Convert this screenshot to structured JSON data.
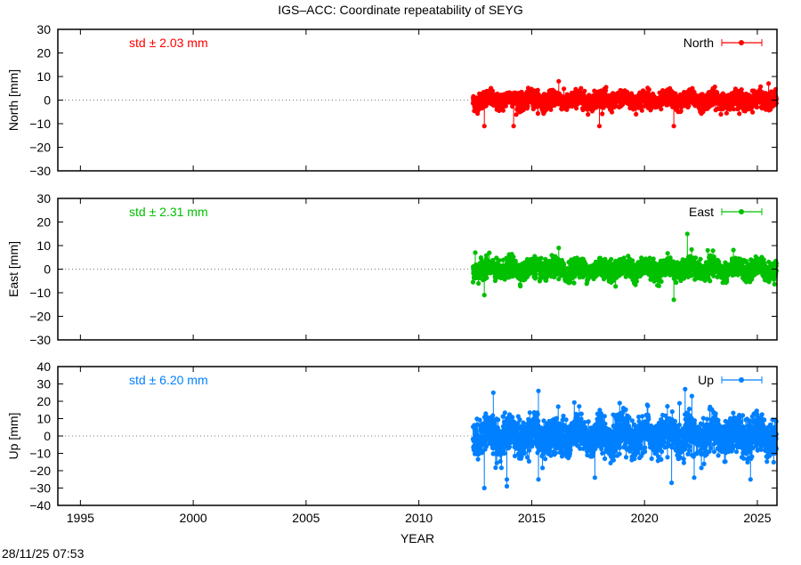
{
  "chart_data": {
    "type": "scatter",
    "title": "IGS–ACC: Coordinate repeatability of SEYG",
    "xlabel": "YEAR",
    "xlim": [
      1994,
      2025.87
    ],
    "xticks": [
      1995,
      2000,
      2005,
      2010,
      2015,
      2020,
      2025
    ],
    "grid": false,
    "zero_line": "dotted",
    "timestamp": "28/11/25 07:53",
    "panels": [
      {
        "name": "North",
        "ylabel": "North [mm]",
        "ylim": [
          -30,
          30
        ],
        "yticks": [
          -30,
          -20,
          -10,
          0,
          10,
          20,
          30
        ],
        "color": "#ff0000",
        "std_label": "std ± 2.03 mm",
        "std": 2.03,
        "x_range": [
          2012.4,
          2025.85
        ],
        "legend": "top-right",
        "notable_points": [
          [
            2012.9,
            -11
          ],
          [
            2014.2,
            -11
          ],
          [
            2016.2,
            8
          ],
          [
            2018.0,
            -11
          ],
          [
            2021.3,
            -11
          ],
          [
            2025.5,
            7
          ]
        ]
      },
      {
        "name": "East",
        "ylabel": "East [mm]",
        "ylim": [
          -30,
          30
        ],
        "yticks": [
          -30,
          -20,
          -10,
          0,
          10,
          20,
          30
        ],
        "color": "#00c000",
        "std_label": "std ± 2.31 mm",
        "std": 2.31,
        "x_range": [
          2012.4,
          2025.85
        ],
        "legend": "top-right",
        "notable_points": [
          [
            2012.5,
            7
          ],
          [
            2012.9,
            -11
          ],
          [
            2016.2,
            9
          ],
          [
            2021.3,
            -13
          ],
          [
            2021.9,
            15
          ],
          [
            2022.8,
            8
          ]
        ]
      },
      {
        "name": "Up",
        "ylabel": "Up [mm]",
        "ylim": [
          -40,
          40
        ],
        "yticks": [
          -40,
          -30,
          -20,
          -10,
          0,
          10,
          20,
          30,
          40
        ],
        "color": "#0080ff",
        "std_label": "std ± 6.20 mm",
        "std": 6.2,
        "x_range": [
          2012.4,
          2025.85
        ],
        "legend": "top-right",
        "notable_points": [
          [
            2012.9,
            -30
          ],
          [
            2013.3,
            25
          ],
          [
            2013.9,
            -29
          ],
          [
            2013.9,
            -25
          ],
          [
            2015.3,
            26
          ],
          [
            2015.3,
            -25
          ],
          [
            2017.8,
            -24
          ],
          [
            2021.2,
            -27
          ],
          [
            2021.8,
            27
          ],
          [
            2022.1,
            23
          ],
          [
            2022.2,
            -24
          ],
          [
            2024.7,
            -25
          ]
        ]
      }
    ]
  }
}
